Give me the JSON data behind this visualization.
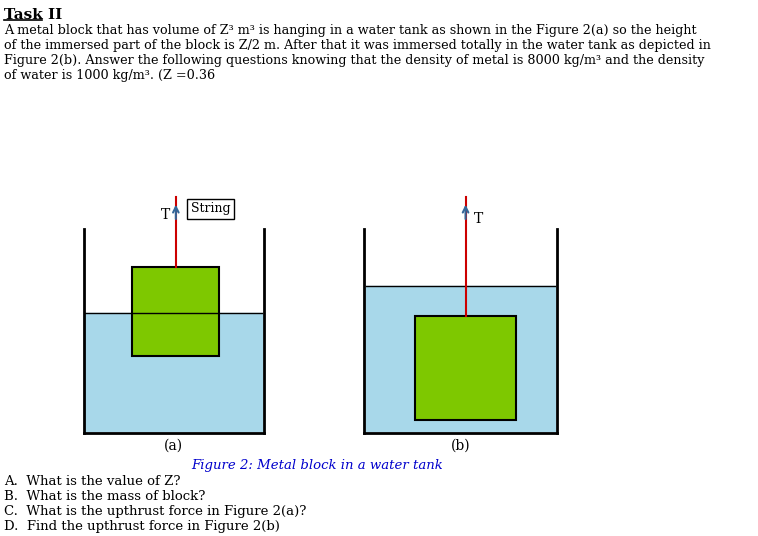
{
  "title": "Task II",
  "para_line1": "A metal block that has volume of Z³ m³ is hanging in a water tank as shown in the Figure 2(a) so the height",
  "para_line2": "of the immersed part of the block is Z/2 m. After that it was immersed totally in the water tank as depicted in",
  "para_line3": "Figure 2(b). Answer the following questions knowing that the density of metal is 8000 kg/m³ and the density",
  "para_line4": "of water is 1000 kg/m³. (Z =0.36",
  "figure_caption": "Figure 2: Metal block in a water tank",
  "label_a": "(a)",
  "label_b": "(b)",
  "questions": [
    "A.  What is the value of Z?",
    "B.  What is the mass of block?",
    "C.  What is the upthrust force in Figure 2(a)?",
    "D.  Find the upthrust force in Figure 2(b)"
  ],
  "string_label": "String",
  "T_label": "T",
  "water_color": "#a8d8ea",
  "block_color": "#7ec800",
  "string_color": "#cc0000",
  "arrow_color": "#336699",
  "bg_color": "#ffffff"
}
